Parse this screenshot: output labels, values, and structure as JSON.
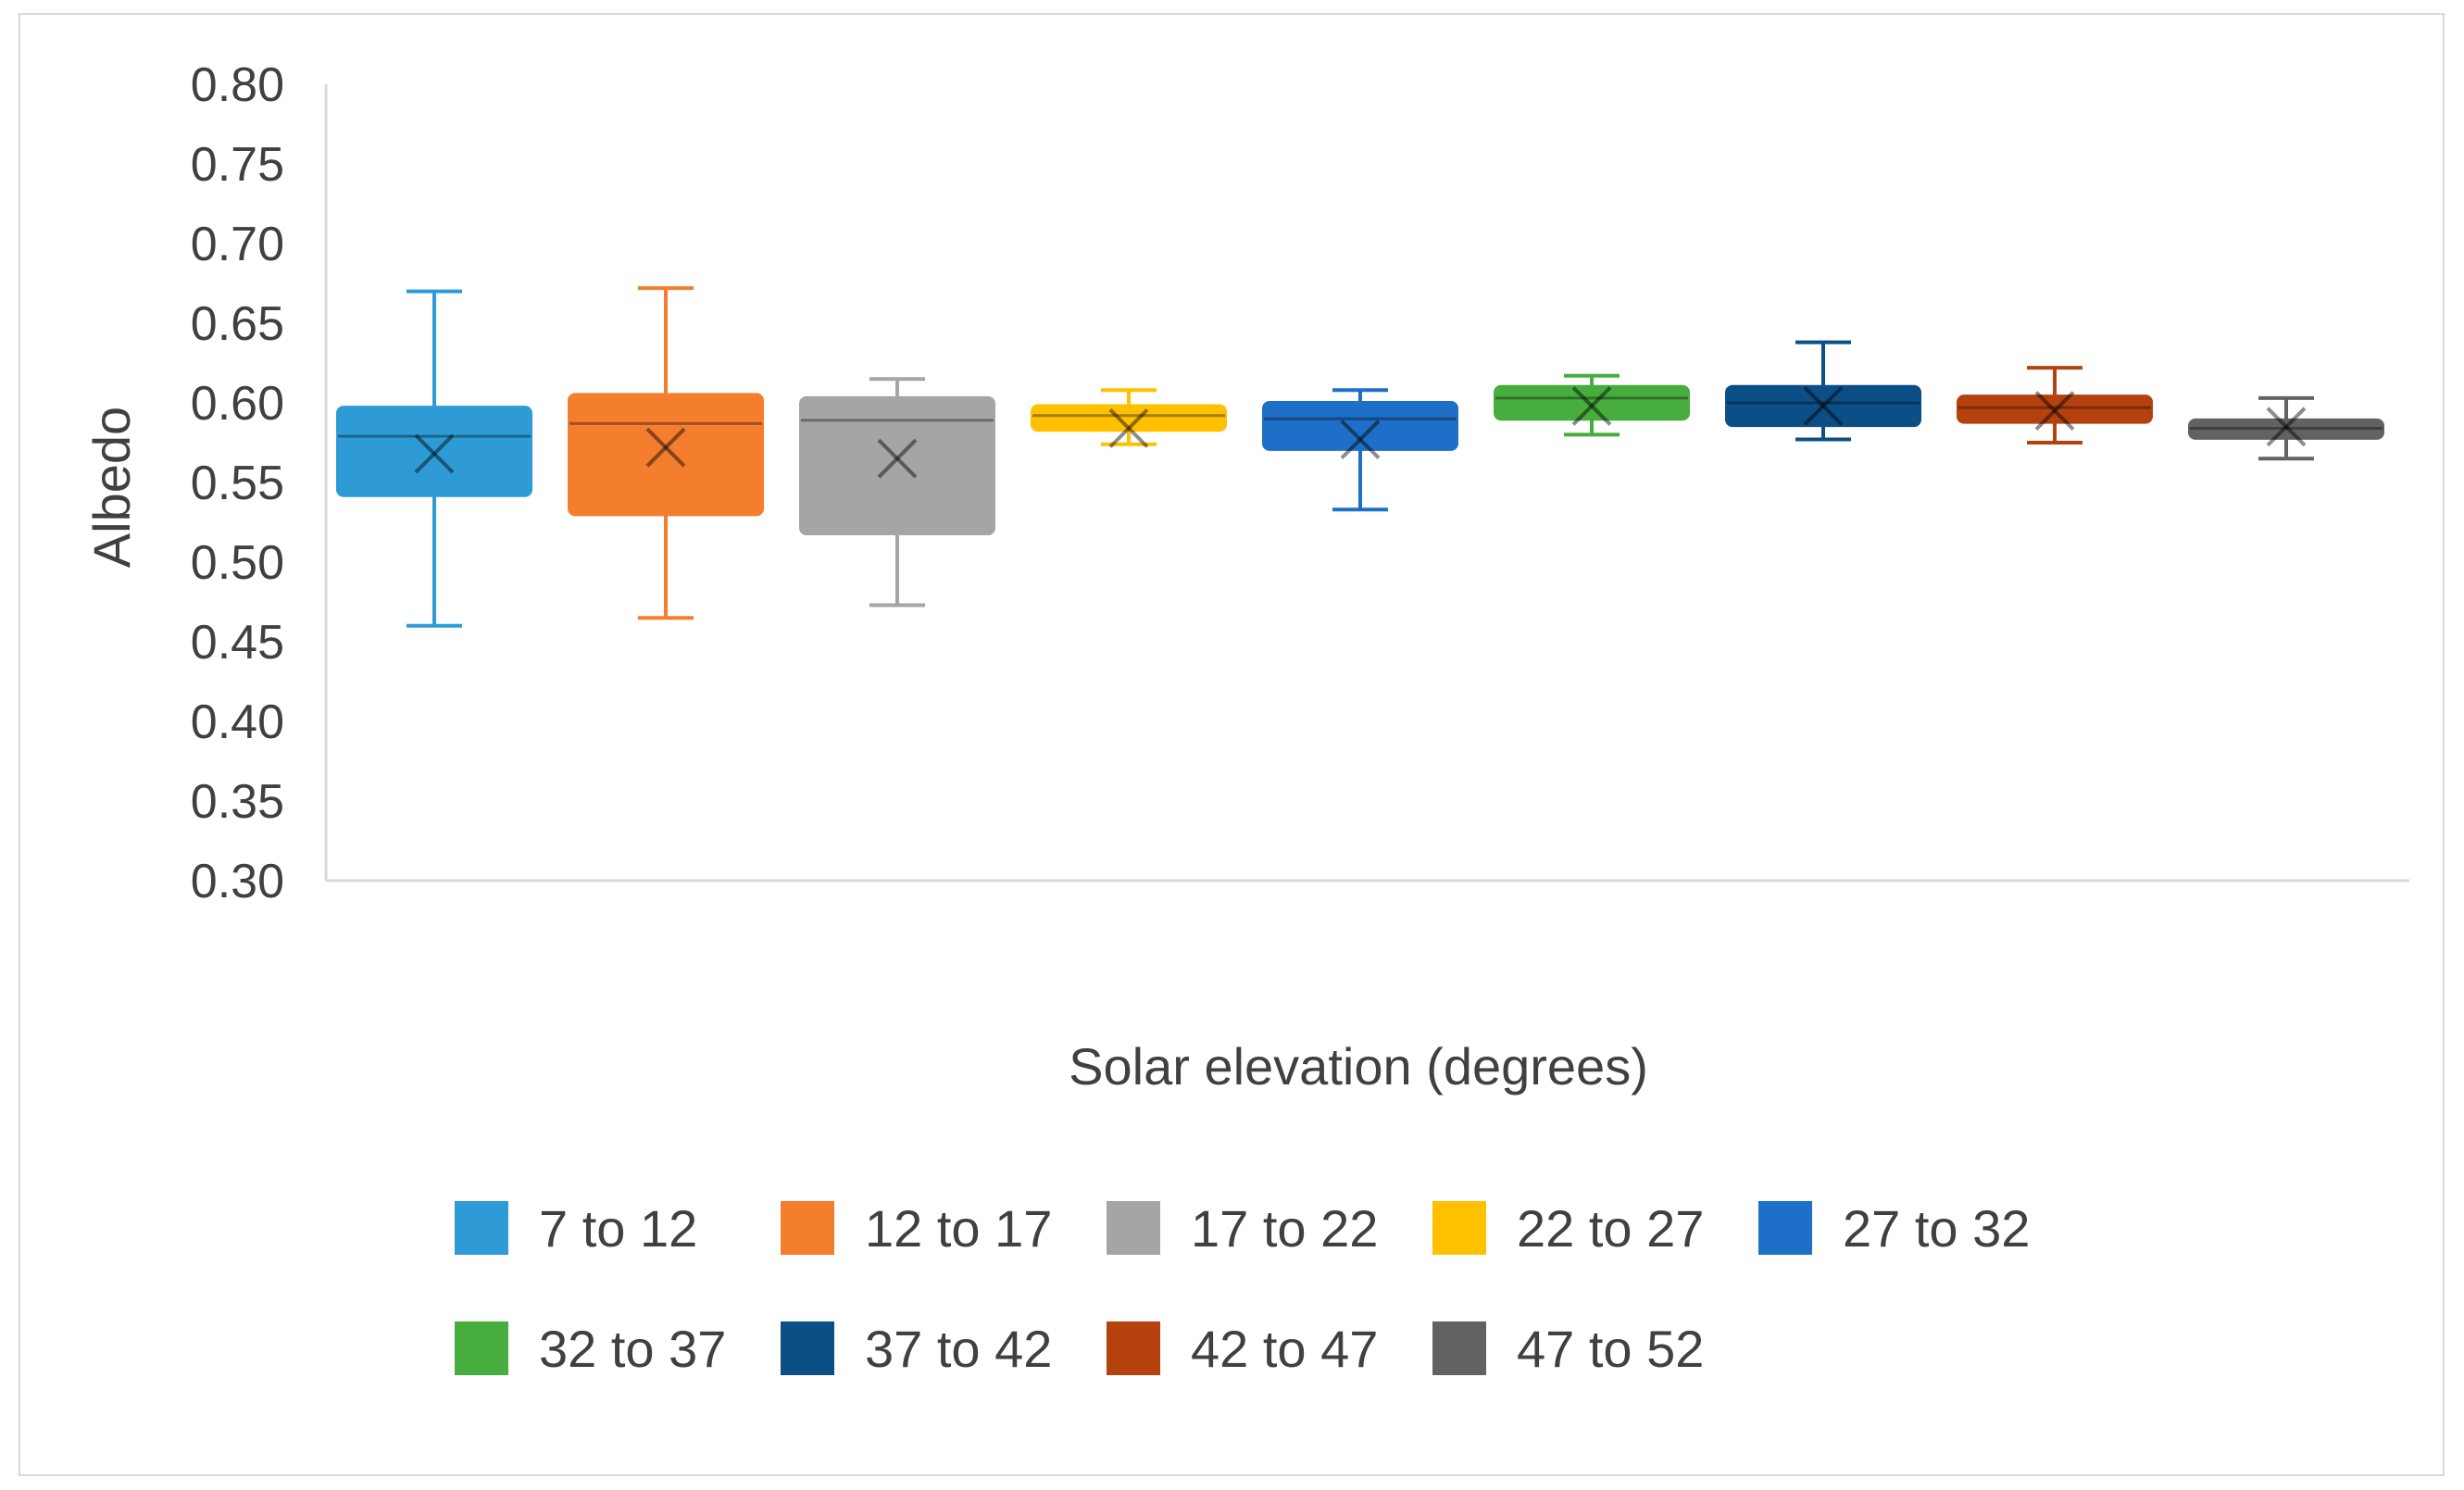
{
  "chart_data": {
    "type": "box",
    "title": "",
    "xlabel": "Solar elevation (degrees)",
    "ylabel": "Albedo",
    "ylim": [
      0.3,
      0.8
    ],
    "ytick_step": 0.05,
    "yticks": [
      "0.30",
      "0.35",
      "0.40",
      "0.45",
      "0.50",
      "0.55",
      "0.60",
      "0.65",
      "0.70",
      "0.75",
      "0.80"
    ],
    "legend_position": "bottom",
    "series": [
      {
        "name": "7 to 12",
        "color": "#2E9BD6",
        "min": 0.46,
        "q1": 0.542,
        "median": 0.579,
        "q3": 0.597,
        "max": 0.67,
        "mean": 0.568
      },
      {
        "name": "12 to 17",
        "color": "#F57E2E",
        "min": 0.465,
        "q1": 0.53,
        "median": 0.587,
        "q3": 0.605,
        "max": 0.672,
        "mean": 0.572
      },
      {
        "name": "17 to 22",
        "color": "#A5A5A5",
        "min": 0.473,
        "q1": 0.518,
        "median": 0.589,
        "q3": 0.603,
        "max": 0.615,
        "mean": 0.565
      },
      {
        "name": "22 to 27",
        "color": "#FFC000",
        "min": 0.574,
        "q1": 0.583,
        "median": 0.592,
        "q3": 0.598,
        "max": 0.608,
        "mean": 0.584
      },
      {
        "name": "27 to 32",
        "color": "#1E6FC8",
        "min": 0.533,
        "q1": 0.571,
        "median": 0.59,
        "q3": 0.6,
        "max": 0.608,
        "mean": 0.577
      },
      {
        "name": "32 to 37",
        "color": "#47AD3E",
        "min": 0.58,
        "q1": 0.59,
        "median": 0.603,
        "q3": 0.61,
        "max": 0.617,
        "mean": 0.598
      },
      {
        "name": "37 to 42",
        "color": "#0B4F86",
        "min": 0.577,
        "q1": 0.586,
        "median": 0.6,
        "q3": 0.61,
        "max": 0.638,
        "mean": 0.598
      },
      {
        "name": "42 to 47",
        "color": "#B5420E",
        "min": 0.575,
        "q1": 0.588,
        "median": 0.597,
        "q3": 0.604,
        "max": 0.622,
        "mean": 0.595
      },
      {
        "name": "47 to 52",
        "color": "#626262",
        "min": 0.565,
        "q1": 0.578,
        "median": 0.584,
        "q3": 0.589,
        "max": 0.603,
        "mean": 0.585
      }
    ]
  }
}
